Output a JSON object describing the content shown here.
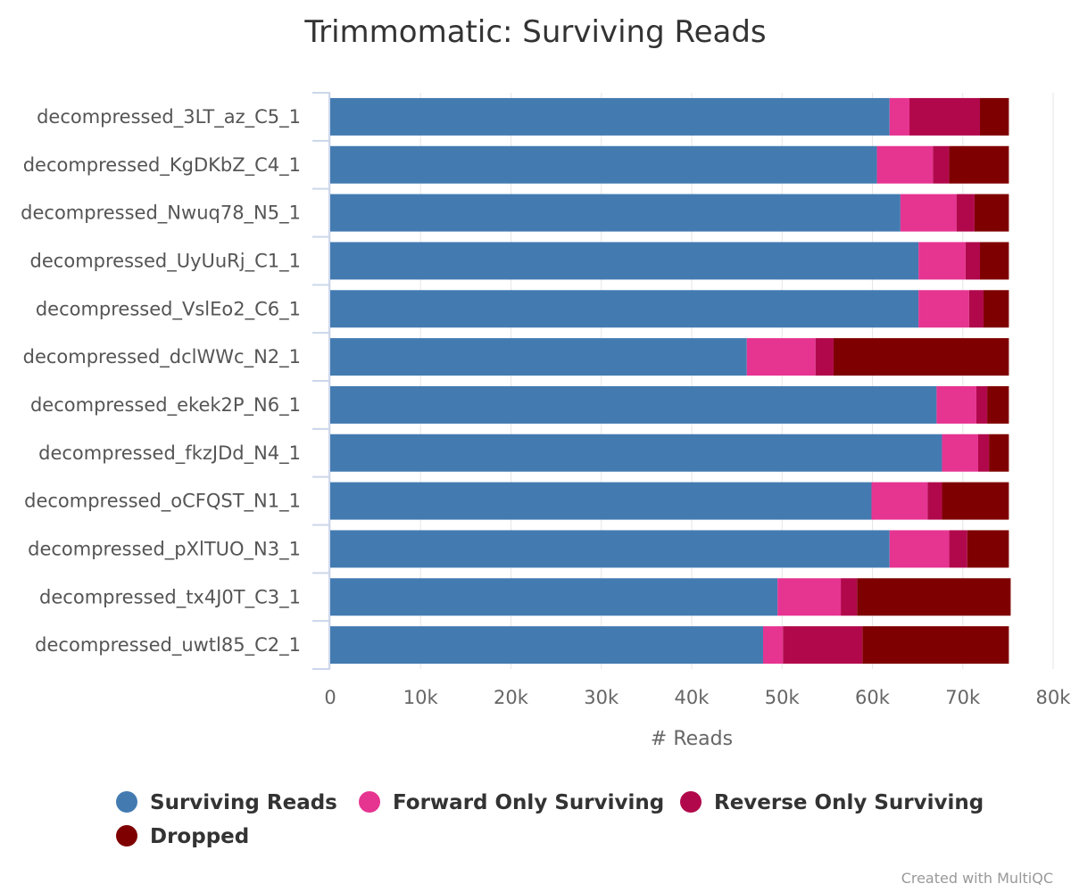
{
  "chart_data": {
    "type": "bar",
    "orientation": "horizontal",
    "stacked": true,
    "title": "Trimmomatic: Surviving Reads",
    "xlabel": "# Reads",
    "ylabel": "",
    "xlim": [
      0,
      80000
    ],
    "x_ticks": [
      "0",
      "10k",
      "20k",
      "30k",
      "40k",
      "50k",
      "60k",
      "70k",
      "80k"
    ],
    "grid": true,
    "legend_position": "bottom-left",
    "categories": [
      "decompressed_3LT_az_C5_1",
      "decompressed_KgDKbZ_C4_1",
      "decompressed_Nwuq78_N5_1",
      "decompressed_UyUuRj_C1_1",
      "decompressed_VslEo2_C6_1",
      "decompressed_dclWWc_N2_1",
      "decompressed_ekek2P_N6_1",
      "decompressed_fkzJDd_N4_1",
      "decompressed_oCFQST_N1_1",
      "decompressed_pXlTUO_N3_1",
      "decompressed_tx4J0T_C3_1",
      "decompressed_uwtl85_C2_1"
    ],
    "series": [
      {
        "name": "Surviving Reads",
        "color": "#437bb1",
        "values": [
          61900,
          60500,
          63100,
          65100,
          65100,
          46100,
          67100,
          67700,
          59900,
          61900,
          49500,
          47900
        ]
      },
      {
        "name": "Forward Only Surviving",
        "color": "#e63491",
        "values": [
          2200,
          6200,
          6200,
          5200,
          5600,
          7600,
          4400,
          4000,
          6200,
          6600,
          7000,
          2200
        ]
      },
      {
        "name": "Reverse Only Surviving",
        "color": "#b1084c",
        "values": [
          7800,
          1800,
          2000,
          1600,
          1600,
          2000,
          1200,
          1200,
          1600,
          2000,
          1800,
          8800
        ]
      },
      {
        "name": "Dropped",
        "color": "#7f0000",
        "values": [
          3200,
          6600,
          3800,
          3200,
          2800,
          19400,
          2400,
          2200,
          7400,
          4600,
          17000,
          16200
        ]
      }
    ]
  },
  "credit": "Created with MultiQC"
}
